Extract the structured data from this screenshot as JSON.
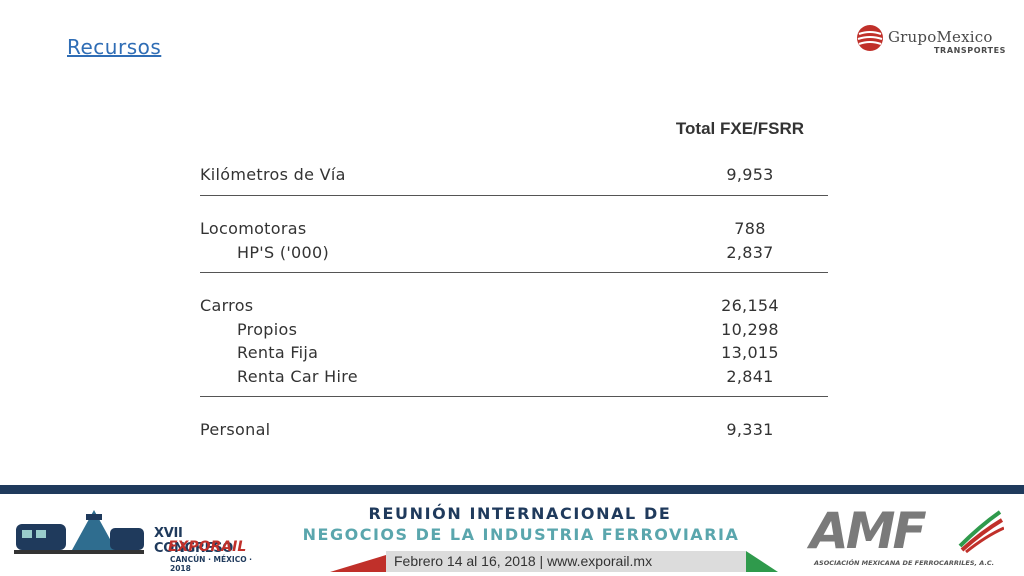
{
  "slide": {
    "title": "Recursos",
    "company_logo": {
      "name": "GrupoMexico",
      "sub": "TRANSPORTES",
      "icon": "grupo-mexico-logo-icon"
    }
  },
  "table": {
    "column_header": "Total FXE/FSRR",
    "groups": [
      {
        "rows": [
          {
            "label": "Kilómetros de Vía",
            "value": "9,953",
            "indent": false
          }
        ]
      },
      {
        "rows": [
          {
            "label": "Locomotoras",
            "value": "788",
            "indent": false
          },
          {
            "label": "HP'S ('000)",
            "value": "2,837",
            "indent": true
          }
        ]
      },
      {
        "rows": [
          {
            "label": "Carros",
            "value": "26,154",
            "indent": false
          },
          {
            "label": "Propios",
            "value": "10,298",
            "indent": true
          },
          {
            "label": "Renta Fija",
            "value": "13,015",
            "indent": true
          },
          {
            "label": "Renta Car Hire",
            "value": "2,841",
            "indent": true
          }
        ]
      },
      {
        "rows": [
          {
            "label": "Personal",
            "value": "9,331",
            "indent": false
          }
        ]
      }
    ]
  },
  "footer": {
    "exporail": {
      "line1": "XVII CONGRESO",
      "line2": "EXPORAIL",
      "line3": "CANCÚN · MÉXICO · 2018"
    },
    "headline1": "REUNIÓN INTERNACIONAL DE",
    "headline2": "NEGOCIOS DE LA INDUSTRIA FERROVIARIA",
    "dates": "Febrero 14 al 16, 2018 | www.exporail.mx",
    "amf": {
      "text": "AMF",
      "sub": "ASOCIACIÓN MEXICANA DE FERROCARRILES, A.C."
    },
    "colors": {
      "navy": "#1f3a5c",
      "teal": "#5aa6ad",
      "green": "#2f9a4c",
      "red": "#c0302a"
    }
  }
}
